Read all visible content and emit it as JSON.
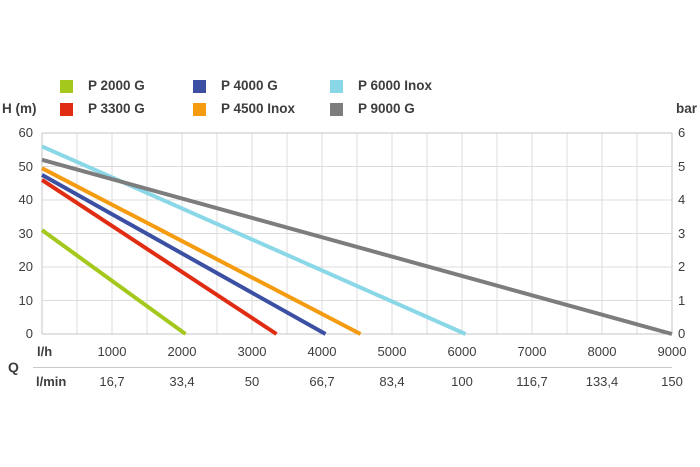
{
  "chart_data": {
    "type": "line",
    "title": "",
    "legend_position": "top",
    "grid": true,
    "y_axis_left": {
      "label": "H (m)",
      "ticks": [
        60,
        50,
        40,
        30,
        20,
        10,
        0
      ],
      "range": [
        0,
        60
      ],
      "grid_step": 10
    },
    "y_axis_right": {
      "label": "bar",
      "ticks": [
        6,
        5,
        4,
        3,
        2,
        1,
        0
      ],
      "range": [
        0,
        6
      ]
    },
    "x_axis": {
      "group_label": "Q",
      "label_primary": "l/h",
      "label_secondary": "l/min",
      "range": [
        0,
        9000
      ],
      "grid_step": 500,
      "ticks_lh": [
        "1000",
        "2000",
        "3000",
        "4000",
        "5000",
        "6000",
        "7000",
        "8000",
        "9000"
      ],
      "ticks_lh_values": [
        1000,
        2000,
        3000,
        4000,
        5000,
        6000,
        7000,
        8000,
        9000
      ],
      "ticks_lmin": [
        "16,7",
        "33,4",
        "50",
        "66,7",
        "83,4",
        "100",
        "116,7",
        "133,4",
        "150"
      ]
    },
    "series": [
      {
        "name": "P 2000 G",
        "color": "#a4c91c",
        "points": [
          [
            0,
            31
          ],
          [
            2050,
            0
          ]
        ]
      },
      {
        "name": "P 3300 G",
        "color": "#e02c12",
        "points": [
          [
            0,
            46
          ],
          [
            3350,
            0
          ]
        ]
      },
      {
        "name": "P 4000 G",
        "color": "#3c50a3",
        "points": [
          [
            0,
            47.5
          ],
          [
            4050,
            0
          ]
        ]
      },
      {
        "name": "P 4500 Inox",
        "color": "#f59b0f",
        "points": [
          [
            0,
            49.5
          ],
          [
            4550,
            0
          ]
        ]
      },
      {
        "name": "P 6000 Inox",
        "color": "#8ad7e8",
        "points": [
          [
            0,
            56
          ],
          [
            6050,
            0
          ]
        ]
      },
      {
        "name": "P 9000 G",
        "color": "#7d7d7d",
        "points": [
          [
            0,
            52
          ],
          [
            9000,
            0
          ]
        ]
      }
    ]
  },
  "colors": {
    "text": "#3d3d3d",
    "grid": "#dcdcdc",
    "axis_border": "#c6c6c6"
  }
}
